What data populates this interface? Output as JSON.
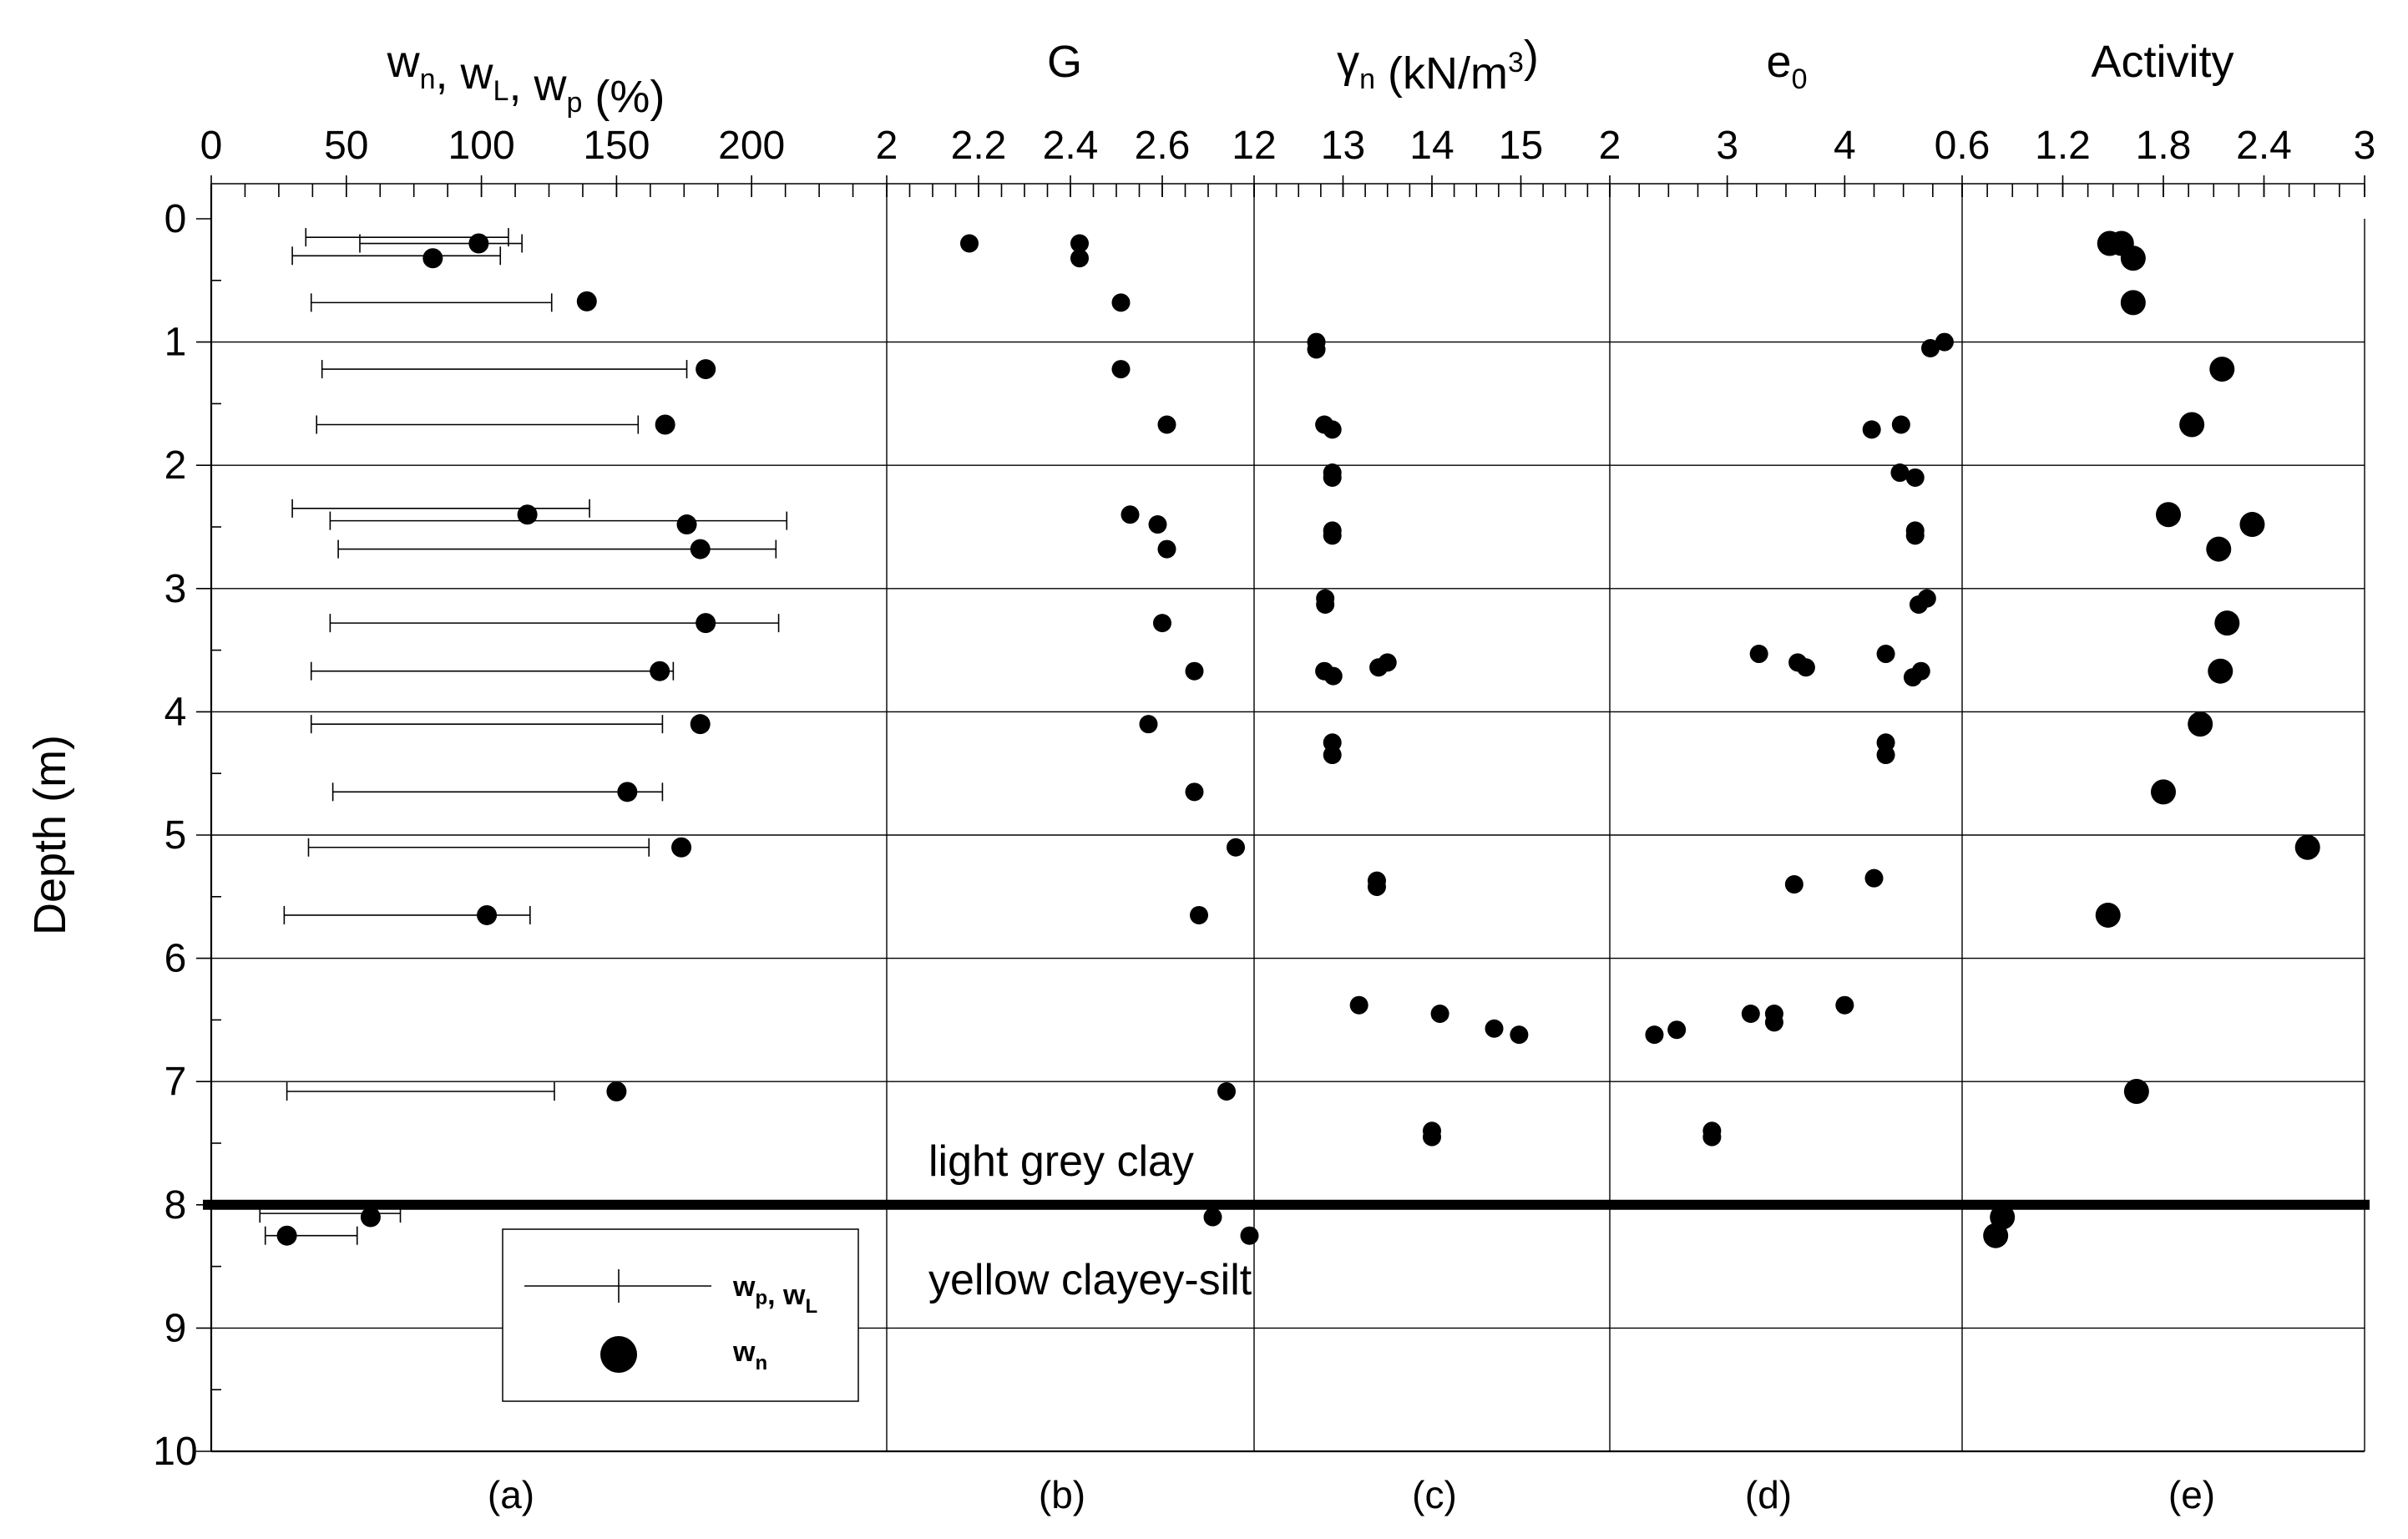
{
  "chart_data": {
    "type": "scatter",
    "ylabel": "Depth (m)",
    "y_ticks": [
      "0",
      "1",
      "2",
      "3",
      "4",
      "5",
      "6",
      "7",
      "8",
      "9",
      "10"
    ],
    "ylim": [
      0,
      10
    ],
    "boundary_depth": 8,
    "annotations": [
      "light grey clay",
      "yellow clayey-silt"
    ],
    "panels": [
      {
        "panel_label": "(a)",
        "title_main": "w",
        "title_parts": [
          {
            "t": "w",
            "s": "n"
          },
          {
            "t": ", w",
            "s": "L"
          },
          {
            "t": ", w",
            "s": "p"
          },
          {
            "t": " (%)",
            "s": ""
          }
        ],
        "xlim": [
          0,
          250
        ],
        "x_ticks": [
          "0",
          "50",
          "100",
          "150",
          "200"
        ],
        "x_tick_values": [
          0,
          50,
          100,
          150,
          200
        ],
        "series": [
          {
            "name": "wp, wL",
            "kind": "range",
            "ranges": [
              {
                "depth": 0.15,
                "wp": 35,
                "wL": 110
              },
              {
                "depth": 0.2,
                "wp": 55,
                "wL": 115
              },
              {
                "depth": 0.3,
                "wp": 30,
                "wL": 107
              },
              {
                "depth": 0.68,
                "wp": 37,
                "wL": 126
              },
              {
                "depth": 1.22,
                "wp": 41,
                "wL": 176
              },
              {
                "depth": 1.67,
                "wp": 39,
                "wL": 158
              },
              {
                "depth": 2.35,
                "wp": 30,
                "wL": 140
              },
              {
                "depth": 2.45,
                "wp": 44,
                "wL": 213
              },
              {
                "depth": 2.68,
                "wp": 47,
                "wL": 209
              },
              {
                "depth": 3.28,
                "wp": 44,
                "wL": 210
              },
              {
                "depth": 3.67,
                "wp": 37,
                "wL": 171
              },
              {
                "depth": 4.1,
                "wp": 37,
                "wL": 167
              },
              {
                "depth": 4.65,
                "wp": 45,
                "wL": 167
              },
              {
                "depth": 5.1,
                "wp": 36,
                "wL": 162
              },
              {
                "depth": 5.65,
                "wp": 27,
                "wL": 118
              },
              {
                "depth": 7.08,
                "wp": 28,
                "wL": 127
              },
              {
                "depth": 8.07,
                "wp": 18,
                "wL": 70
              },
              {
                "depth": 8.25,
                "wp": 20,
                "wL": 54
              }
            ]
          },
          {
            "name": "wn",
            "kind": "points",
            "points": [
              [
                99,
                0.2
              ],
              [
                82,
                0.32
              ],
              [
                139,
                0.67
              ],
              [
                183,
                1.22
              ],
              [
                168,
                1.67
              ],
              [
                117,
                2.4
              ],
              [
                176,
                2.48
              ],
              [
                181,
                2.68
              ],
              [
                183,
                3.28
              ],
              [
                166,
                3.67
              ],
              [
                181,
                4.1
              ],
              [
                154,
                4.65
              ],
              [
                174,
                5.1
              ],
              [
                102,
                5.65
              ],
              [
                150,
                7.08
              ],
              [
                59,
                8.1
              ],
              [
                28,
                8.25
              ]
            ]
          }
        ]
      },
      {
        "panel_label": "(b)",
        "title_parts": [
          {
            "t": "G",
            "s": ""
          }
        ],
        "xlim": [
          2,
          2.8
        ],
        "x_ticks": [
          "2",
          "2.2",
          "2.4",
          "2.6"
        ],
        "x_tick_values": [
          2,
          2.2,
          2.4,
          2.6
        ],
        "series": [
          {
            "name": "G",
            "kind": "points",
            "points": [
              [
                2.18,
                0.2
              ],
              [
                2.42,
                0.2
              ],
              [
                2.42,
                0.32
              ],
              [
                2.51,
                0.68
              ],
              [
                2.51,
                1.22
              ],
              [
                2.61,
                1.67
              ],
              [
                2.53,
                2.4
              ],
              [
                2.59,
                2.48
              ],
              [
                2.61,
                2.68
              ],
              [
                2.6,
                3.28
              ],
              [
                2.67,
                3.67
              ],
              [
                2.57,
                4.1
              ],
              [
                2.67,
                4.65
              ],
              [
                2.76,
                5.1
              ],
              [
                2.68,
                5.65
              ],
              [
                2.74,
                7.08
              ],
              [
                2.71,
                8.1
              ],
              [
                2.79,
                8.25
              ]
            ]
          }
        ]
      },
      {
        "panel_label": "(c)",
        "title_parts": [
          {
            "t": "γ",
            "s": "n"
          },
          {
            "t": " (kN/m",
            "s": ""
          },
          {
            "t": "3",
            "sup": true
          },
          {
            "t": ")",
            "s": ""
          }
        ],
        "xlim": [
          12,
          16
        ],
        "x_ticks": [
          "12",
          "13",
          "14",
          "15"
        ],
        "x_tick_values": [
          12,
          13,
          14,
          15
        ],
        "series": [
          {
            "name": "γn",
            "kind": "points",
            "points": [
              [
                12.7,
                1.0
              ],
              [
                12.7,
                1.06
              ],
              [
                12.79,
                1.67
              ],
              [
                12.88,
                1.71
              ],
              [
                12.88,
                2.06
              ],
              [
                12.88,
                2.1
              ],
              [
                12.88,
                2.53
              ],
              [
                12.88,
                2.57
              ],
              [
                12.8,
                3.08
              ],
              [
                12.8,
                3.13
              ],
              [
                13.5,
                3.6
              ],
              [
                13.4,
                3.64
              ],
              [
                12.79,
                3.67
              ],
              [
                12.89,
                3.71
              ],
              [
                12.88,
                4.25
              ],
              [
                12.88,
                4.35
              ],
              [
                13.38,
                5.37
              ],
              [
                13.38,
                5.42
              ],
              [
                13.18,
                6.38
              ],
              [
                14.09,
                6.45
              ],
              [
                14.7,
                6.57
              ],
              [
                14.98,
                6.62
              ],
              [
                14.0,
                7.4
              ],
              [
                14.0,
                7.45
              ]
            ]
          }
        ]
      },
      {
        "panel_label": "(d)",
        "title_parts": [
          {
            "t": "e",
            "s": "0"
          }
        ],
        "xlim": [
          2,
          5
        ],
        "x_ticks": [
          "2",
          "3",
          "4"
        ],
        "x_tick_values": [
          2,
          3,
          4
        ],
        "series": [
          {
            "name": "e0",
            "kind": "points",
            "points": [
              [
                4.85,
                1.0
              ],
              [
                4.73,
                1.05
              ],
              [
                4.23,
                1.71
              ],
              [
                4.48,
                1.67
              ],
              [
                4.47,
                2.06
              ],
              [
                4.6,
                2.1
              ],
              [
                4.6,
                2.53
              ],
              [
                4.6,
                2.57
              ],
              [
                4.7,
                3.08
              ],
              [
                4.63,
                3.13
              ],
              [
                3.27,
                3.53
              ],
              [
                3.6,
                3.6
              ],
              [
                3.67,
                3.64
              ],
              [
                4.35,
                3.53
              ],
              [
                4.65,
                3.67
              ],
              [
                4.58,
                3.72
              ],
              [
                4.35,
                4.25
              ],
              [
                4.35,
                4.35
              ],
              [
                4.25,
                5.35
              ],
              [
                3.57,
                5.4
              ],
              [
                2.38,
                6.62
              ],
              [
                2.57,
                6.58
              ],
              [
                3.2,
                6.45
              ],
              [
                3.4,
                6.45
              ],
              [
                3.4,
                6.52
              ],
              [
                4.0,
                6.38
              ],
              [
                2.87,
                7.4
              ],
              [
                2.87,
                7.45
              ]
            ]
          }
        ]
      },
      {
        "panel_label": "(e)",
        "title_parts": [
          {
            "t": "Activity",
            "s": ""
          }
        ],
        "xlim": [
          0.6,
          3
        ],
        "x_ticks": [
          "0.6",
          "1.2",
          "1.8",
          "2.4",
          "3"
        ],
        "x_tick_values": [
          0.6,
          1.2,
          1.8,
          2.4,
          3
        ],
        "series": [
          {
            "name": "Activity",
            "kind": "points",
            "points": [
              [
                1.48,
                0.2
              ],
              [
                1.55,
                0.2
              ],
              [
                1.62,
                0.32
              ],
              [
                1.62,
                0.68
              ],
              [
                2.15,
                1.22
              ],
              [
                1.97,
                1.67
              ],
              [
                1.83,
                2.4
              ],
              [
                2.33,
                2.48
              ],
              [
                2.13,
                2.68
              ],
              [
                2.18,
                3.28
              ],
              [
                2.14,
                3.67
              ],
              [
                2.02,
                4.1
              ],
              [
                1.8,
                4.65
              ],
              [
                2.66,
                5.1
              ],
              [
                1.47,
                5.65
              ],
              [
                1.64,
                7.08
              ],
              [
                0.84,
                8.1
              ],
              [
                0.8,
                8.25
              ]
            ]
          }
        ]
      }
    ],
    "legend": {
      "position": "bottom-left (panel a)",
      "entries": [
        {
          "name_parts": [
            {
              "t": "w",
              "s": "p"
            },
            {
              "t": ", w",
              "s": "L"
            }
          ],
          "marker": "range"
        },
        {
          "name_parts": [
            {
              "t": "w",
              "s": "n"
            }
          ],
          "marker": "dot"
        }
      ]
    }
  }
}
